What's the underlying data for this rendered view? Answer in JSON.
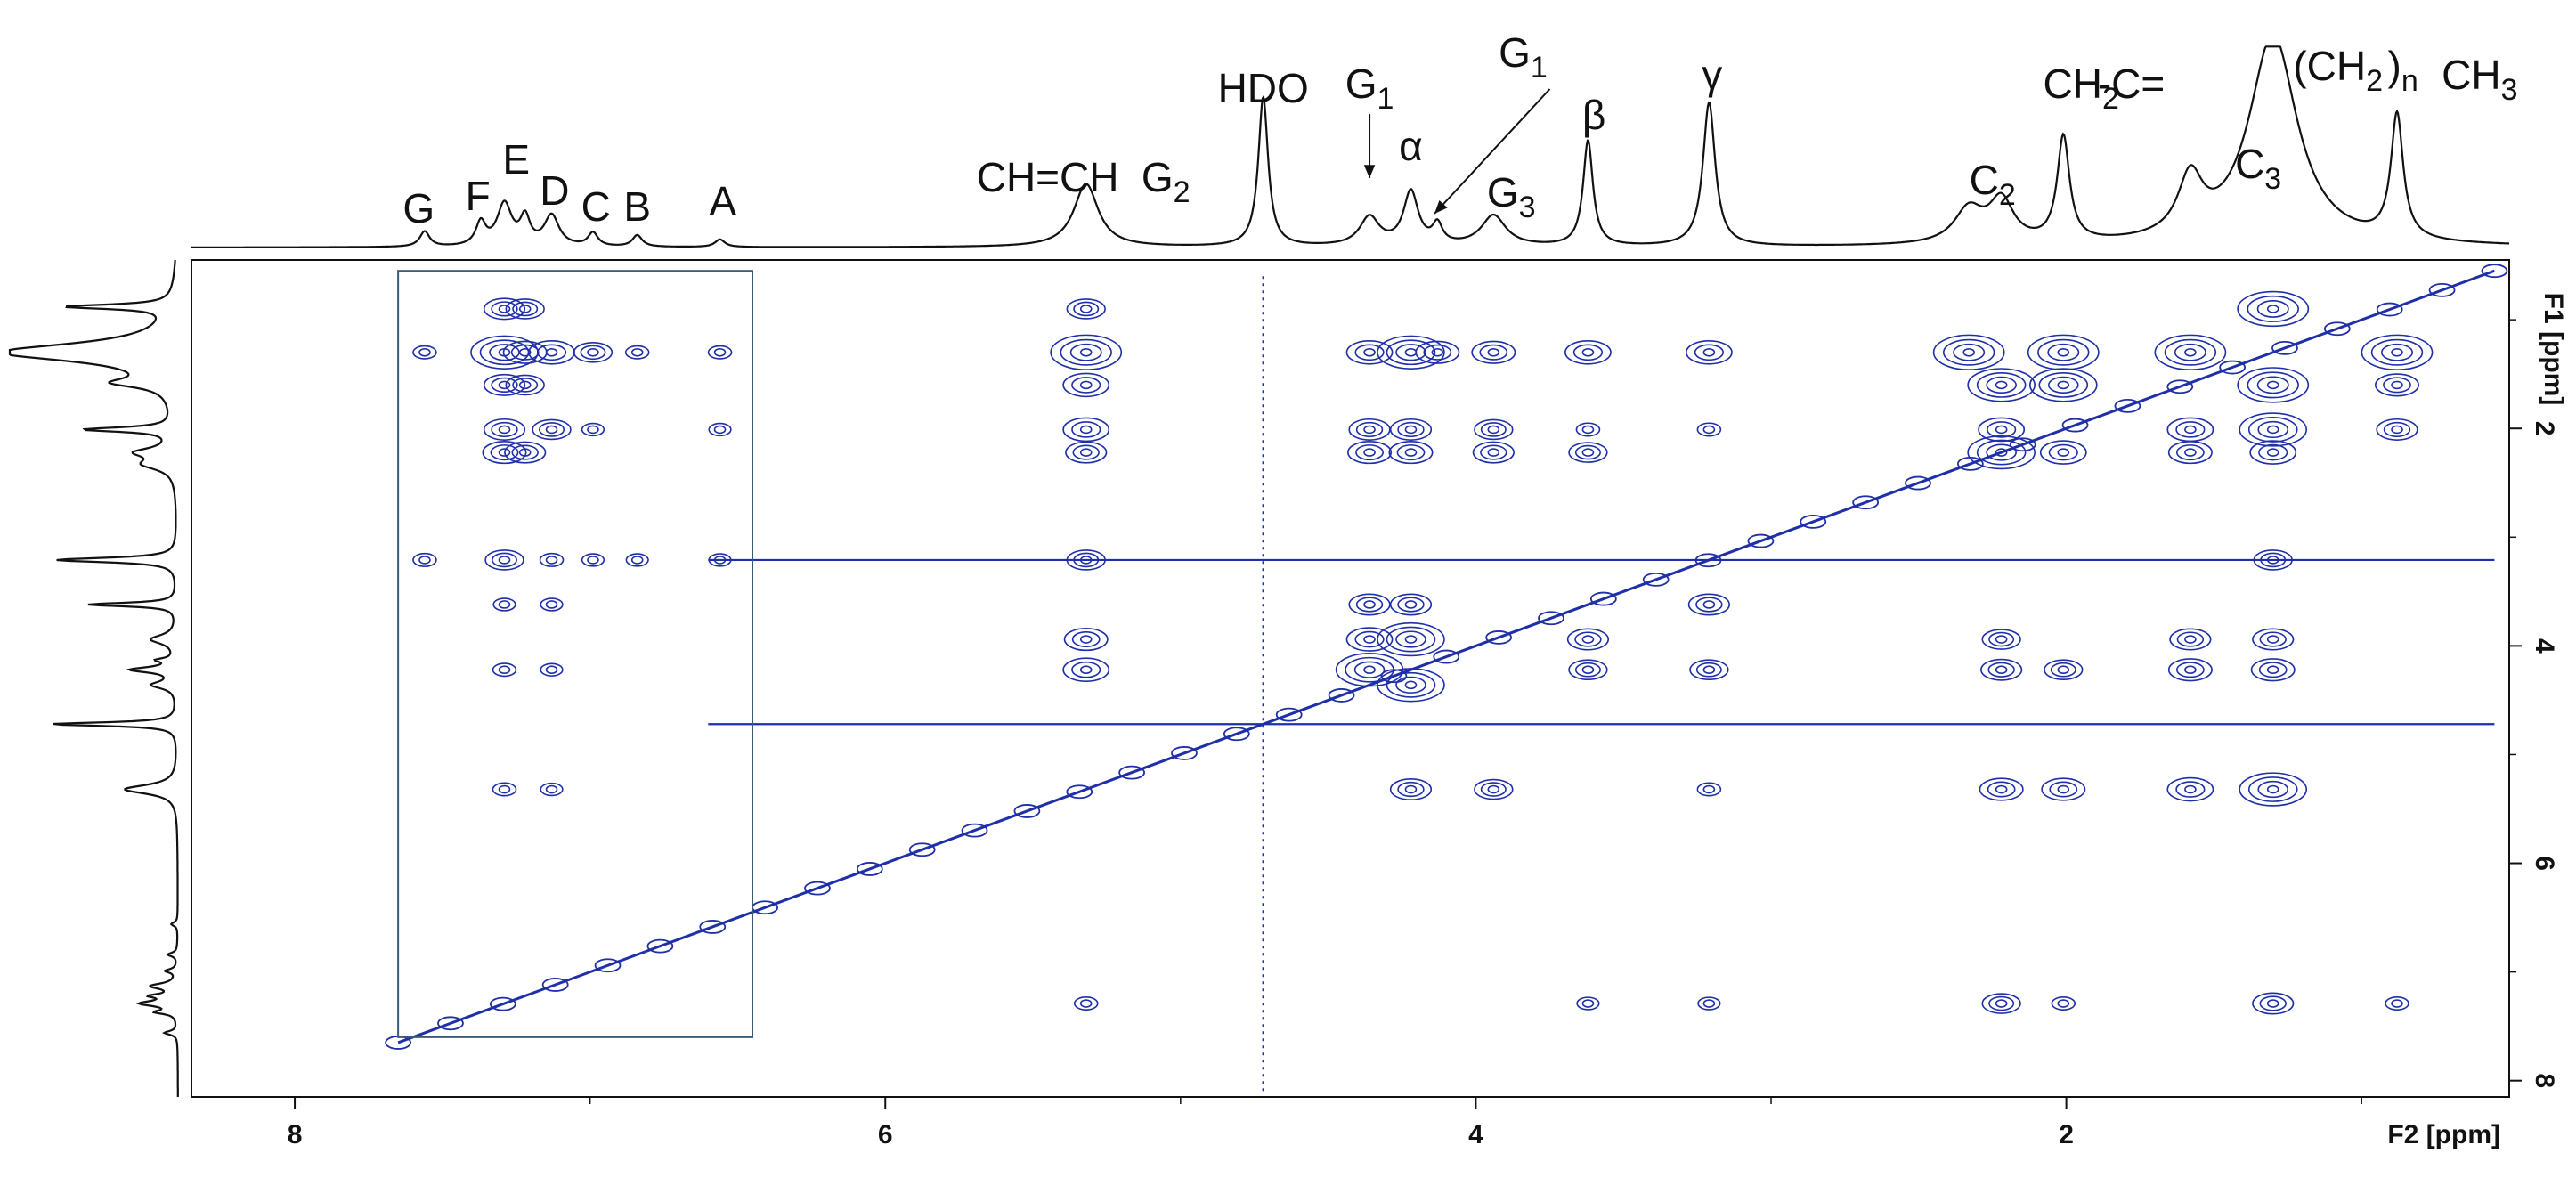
{
  "chart_data": {
    "type": "heatmap",
    "subtype": "2D NMR TOCSY contour map with 1D projections",
    "title": "",
    "xlabel": "F2 [ppm]",
    "ylabel": "F1 [ppm]",
    "x_reversed": true,
    "y_reversed": true,
    "xlim": [
      8.35,
      0.5
    ],
    "ylim": [
      0.45,
      8.15
    ],
    "x_ticks": [
      8,
      6,
      4,
      2
    ],
    "y_ticks": [
      2,
      4,
      6,
      8
    ],
    "contour_color": "#1f2fa8",
    "line_color": "#111111",
    "peak_labels": [
      {
        "text": "G",
        "sub": "",
        "ppm": 7.58
      },
      {
        "text": "F",
        "sub": "",
        "ppm": 7.38
      },
      {
        "text": "E",
        "sub": "",
        "ppm": 7.25
      },
      {
        "text": "D",
        "sub": "",
        "ppm": 7.12
      },
      {
        "text": "C",
        "sub": "",
        "ppm": 6.98
      },
      {
        "text": "B",
        "sub": "",
        "ppm": 6.84
      },
      {
        "text": "A",
        "sub": "",
        "ppm": 6.55
      },
      {
        "text": "CH=CH",
        "sub": "",
        "ppm": 5.45
      },
      {
        "text": "G",
        "sub": "2",
        "ppm": 5.05
      },
      {
        "text": "HDO",
        "sub": "",
        "ppm": 4.72
      },
      {
        "text": "G",
        "sub": "1",
        "ppm": 4.36
      },
      {
        "text": "α",
        "sub": "",
        "ppm": 4.22
      },
      {
        "text": "G",
        "sub": "1",
        "ppm": 3.84
      },
      {
        "text": "G",
        "sub": "3",
        "ppm": 3.88
      },
      {
        "text": "β",
        "sub": "",
        "ppm": 3.6
      },
      {
        "text": "γ",
        "sub": "",
        "ppm": 3.2
      },
      {
        "text": "C",
        "sub": "2",
        "ppm": 2.25
      },
      {
        "text": "CH",
        "sub": "2",
        "ppm": 1.95
      },
      {
        "text": "-C=",
        "sub": "",
        "ppm": 1.78
      },
      {
        "text": "C",
        "sub": "3",
        "ppm": 1.35
      },
      {
        "text": "(CH",
        "sub": "2",
        "ppm": 1.08
      },
      {
        "text": ")",
        "sub": "n",
        "ppm": 0.86
      },
      {
        "text": "CH",
        "sub": "3",
        "ppm": 0.6
      }
    ],
    "projection_peaks": [
      {
        "ppm": 7.56,
        "height": 0.08,
        "width": 0.02
      },
      {
        "ppm": 7.37,
        "height": 0.12,
        "width": 0.02
      },
      {
        "ppm": 7.29,
        "height": 0.22,
        "width": 0.03
      },
      {
        "ppm": 7.22,
        "height": 0.14,
        "width": 0.02
      },
      {
        "ppm": 7.13,
        "height": 0.16,
        "width": 0.03
      },
      {
        "ppm": 6.99,
        "height": 0.07,
        "width": 0.02
      },
      {
        "ppm": 6.84,
        "height": 0.06,
        "width": 0.02
      },
      {
        "ppm": 6.56,
        "height": 0.04,
        "width": 0.02
      },
      {
        "ppm": 5.32,
        "height": 0.33,
        "width": 0.05
      },
      {
        "ppm": 4.72,
        "height": 0.78,
        "width": 0.02
      },
      {
        "ppm": 4.36,
        "height": 0.15,
        "width": 0.04
      },
      {
        "ppm": 4.22,
        "height": 0.28,
        "width": 0.03
      },
      {
        "ppm": 4.13,
        "height": 0.1,
        "width": 0.02
      },
      {
        "ppm": 3.94,
        "height": 0.16,
        "width": 0.05
      },
      {
        "ppm": 3.62,
        "height": 0.55,
        "width": 0.02
      },
      {
        "ppm": 3.21,
        "height": 0.75,
        "width": 0.025
      },
      {
        "ppm": 2.33,
        "height": 0.18,
        "width": 0.06
      },
      {
        "ppm": 2.22,
        "height": 0.22,
        "width": 0.05
      },
      {
        "ppm": 2.01,
        "height": 0.55,
        "width": 0.025
      },
      {
        "ppm": 1.58,
        "height": 0.3,
        "width": 0.05
      },
      {
        "ppm": 1.3,
        "height": 1.1,
        "width": 0.1
      },
      {
        "ppm": 0.88,
        "height": 0.65,
        "width": 0.025
      }
    ],
    "diagonal": {
      "from_ppm": 7.65,
      "to_ppm": 0.55
    },
    "cross_peak_rows_F1": [
      0.9,
      1.3,
      1.6,
      2.01,
      2.22,
      3.21,
      3.62,
      3.94,
      4.22,
      4.36,
      4.72,
      5.32,
      7.13,
      7.29
    ],
    "cross_peak_columns_F2": [
      7.56,
      7.29,
      7.22,
      7.13,
      6.99,
      6.84,
      6.56,
      5.32,
      4.36,
      4.22,
      4.13,
      3.94,
      3.62,
      3.21,
      2.22,
      2.01,
      1.58,
      1.3,
      0.88
    ],
    "cross_peaks": [
      {
        "f2": 7.56,
        "f1": 1.3,
        "i": 0.4
      },
      {
        "f2": 7.29,
        "f1": 1.3,
        "i": 0.9
      },
      {
        "f2": 7.22,
        "f1": 1.3,
        "i": 0.7
      },
      {
        "f2": 7.13,
        "f1": 1.3,
        "i": 0.8
      },
      {
        "f2": 6.99,
        "f1": 1.3,
        "i": 0.5
      },
      {
        "f2": 6.84,
        "f1": 1.3,
        "i": 0.4
      },
      {
        "f2": 6.56,
        "f1": 1.3,
        "i": 0.4
      },
      {
        "f2": 7.29,
        "f1": 0.9,
        "i": 0.6
      },
      {
        "f2": 7.22,
        "f1": 0.9,
        "i": 0.5
      },
      {
        "f2": 7.29,
        "f1": 1.6,
        "i": 0.6
      },
      {
        "f2": 7.22,
        "f1": 1.6,
        "i": 0.5
      },
      {
        "f2": 7.29,
        "f1": 2.01,
        "i": 0.6
      },
      {
        "f2": 7.13,
        "f1": 2.01,
        "i": 0.5
      },
      {
        "f2": 6.99,
        "f1": 2.01,
        "i": 0.3
      },
      {
        "f2": 6.56,
        "f1": 2.01,
        "i": 0.3
      },
      {
        "f2": 7.29,
        "f1": 2.22,
        "i": 0.7
      },
      {
        "f2": 7.22,
        "f1": 2.22,
        "i": 0.6
      },
      {
        "f2": 7.56,
        "f1": 3.21,
        "i": 0.4
      },
      {
        "f2": 7.29,
        "f1": 3.21,
        "i": 0.5
      },
      {
        "f2": 7.13,
        "f1": 3.21,
        "i": 0.4
      },
      {
        "f2": 6.99,
        "f1": 3.21,
        "i": 0.3
      },
      {
        "f2": 6.84,
        "f1": 3.21,
        "i": 0.3
      },
      {
        "f2": 6.56,
        "f1": 3.21,
        "i": 0.3
      },
      {
        "f2": 7.29,
        "f1": 3.62,
        "i": 0.3
      },
      {
        "f2": 7.13,
        "f1": 3.62,
        "i": 0.3
      },
      {
        "f2": 7.29,
        "f1": 4.22,
        "i": 0.4
      },
      {
        "f2": 7.13,
        "f1": 4.22,
        "i": 0.3
      },
      {
        "f2": 7.29,
        "f1": 5.32,
        "i": 0.4
      },
      {
        "f2": 7.13,
        "f1": 5.32,
        "i": 0.3
      },
      {
        "f2": 5.32,
        "f1": 1.3,
        "i": 1.0
      },
      {
        "f2": 5.32,
        "f1": 0.9,
        "i": 0.5
      },
      {
        "f2": 5.32,
        "f1": 1.6,
        "i": 0.8
      },
      {
        "f2": 5.32,
        "f1": 2.01,
        "i": 0.8
      },
      {
        "f2": 5.32,
        "f1": 2.22,
        "i": 0.6
      },
      {
        "f2": 5.32,
        "f1": 3.21,
        "i": 0.5
      },
      {
        "f2": 5.32,
        "f1": 3.94,
        "i": 0.7
      },
      {
        "f2": 5.32,
        "f1": 4.22,
        "i": 0.8
      },
      {
        "f2": 5.32,
        "f1": 7.29,
        "i": 0.4
      },
      {
        "f2": 4.36,
        "f1": 1.3,
        "i": 0.8
      },
      {
        "f2": 4.22,
        "f1": 1.3,
        "i": 0.9
      },
      {
        "f2": 4.13,
        "f1": 1.3,
        "i": 0.7
      },
      {
        "f2": 3.94,
        "f1": 1.3,
        "i": 0.7
      },
      {
        "f2": 4.36,
        "f1": 2.01,
        "i": 0.6
      },
      {
        "f2": 4.22,
        "f1": 2.01,
        "i": 0.6
      },
      {
        "f2": 3.94,
        "f1": 2.01,
        "i": 0.5
      },
      {
        "f2": 4.36,
        "f1": 2.22,
        "i": 0.7
      },
      {
        "f2": 4.22,
        "f1": 2.22,
        "i": 0.7
      },
      {
        "f2": 3.94,
        "f1": 2.22,
        "i": 0.6
      },
      {
        "f2": 4.36,
        "f1": 3.62,
        "i": 0.6
      },
      {
        "f2": 4.22,
        "f1": 3.62,
        "i": 0.6
      },
      {
        "f2": 4.36,
        "f1": 3.94,
        "i": 0.8
      },
      {
        "f2": 4.22,
        "f1": 3.94,
        "i": 0.9
      },
      {
        "f2": 4.36,
        "f1": 4.22,
        "i": 0.9
      },
      {
        "f2": 4.22,
        "f1": 4.36,
        "i": 0.9
      },
      {
        "f2": 4.22,
        "f1": 5.32,
        "i": 0.6
      },
      {
        "f2": 3.94,
        "f1": 5.32,
        "i": 0.5
      },
      {
        "f2": 3.62,
        "f1": 1.3,
        "i": 0.8
      },
      {
        "f2": 3.62,
        "f1": 2.01,
        "i": 0.4
      },
      {
        "f2": 3.62,
        "f1": 2.22,
        "i": 0.5
      },
      {
        "f2": 3.62,
        "f1": 3.94,
        "i": 0.6
      },
      {
        "f2": 3.62,
        "f1": 4.22,
        "i": 0.5
      },
      {
        "f2": 3.62,
        "f1": 7.29,
        "i": 0.3
      },
      {
        "f2": 3.21,
        "f1": 1.3,
        "i": 0.8
      },
      {
        "f2": 3.21,
        "f1": 2.01,
        "i": 0.4
      },
      {
        "f2": 3.21,
        "f1": 3.62,
        "i": 0.6
      },
      {
        "f2": 3.21,
        "f1": 4.22,
        "i": 0.5
      },
      {
        "f2": 3.21,
        "f1": 5.32,
        "i": 0.4
      },
      {
        "f2": 3.21,
        "f1": 7.29,
        "i": 0.3
      },
      {
        "f2": 2.33,
        "f1": 1.3,
        "i": 1.0
      },
      {
        "f2": 2.22,
        "f1": 1.6,
        "i": 0.9
      },
      {
        "f2": 2.22,
        "f1": 2.01,
        "i": 0.8
      },
      {
        "f2": 2.22,
        "f1": 2.22,
        "i": 0.9
      },
      {
        "f2": 2.22,
        "f1": 3.94,
        "i": 0.5
      },
      {
        "f2": 2.22,
        "f1": 4.22,
        "i": 0.6
      },
      {
        "f2": 2.22,
        "f1": 5.32,
        "i": 0.7
      },
      {
        "f2": 2.22,
        "f1": 7.29,
        "i": 0.5
      },
      {
        "f2": 2.01,
        "f1": 1.3,
        "i": 1.0
      },
      {
        "f2": 2.01,
        "f1": 1.6,
        "i": 0.9
      },
      {
        "f2": 2.01,
        "f1": 2.22,
        "i": 0.8
      },
      {
        "f2": 2.01,
        "f1": 4.22,
        "i": 0.5
      },
      {
        "f2": 2.01,
        "f1": 5.32,
        "i": 0.7
      },
      {
        "f2": 2.01,
        "f1": 7.29,
        "i": 0.4
      },
      {
        "f2": 1.58,
        "f1": 1.3,
        "i": 1.0
      },
      {
        "f2": 1.58,
        "f1": 2.01,
        "i": 0.8
      },
      {
        "f2": 1.58,
        "f1": 2.22,
        "i": 0.7
      },
      {
        "f2": 1.58,
        "f1": 3.94,
        "i": 0.6
      },
      {
        "f2": 1.58,
        "f1": 4.22,
        "i": 0.7
      },
      {
        "f2": 1.58,
        "f1": 5.32,
        "i": 0.8
      },
      {
        "f2": 1.3,
        "f1": 0.9,
        "i": 1.0
      },
      {
        "f2": 1.3,
        "f1": 1.6,
        "i": 1.0
      },
      {
        "f2": 1.3,
        "f1": 2.01,
        "i": 0.9
      },
      {
        "f2": 1.3,
        "f1": 2.22,
        "i": 0.8
      },
      {
        "f2": 1.3,
        "f1": 3.21,
        "i": 0.5
      },
      {
        "f2": 1.3,
        "f1": 3.94,
        "i": 0.6
      },
      {
        "f2": 1.3,
        "f1": 4.22,
        "i": 0.7
      },
      {
        "f2": 1.3,
        "f1": 5.32,
        "i": 0.9
      },
      {
        "f2": 1.3,
        "f1": 7.29,
        "i": 0.6
      },
      {
        "f2": 0.88,
        "f1": 1.3,
        "i": 1.0
      },
      {
        "f2": 0.88,
        "f1": 1.6,
        "i": 0.7
      },
      {
        "f2": 0.88,
        "f1": 2.01,
        "i": 0.6
      },
      {
        "f2": 0.88,
        "f1": 7.29,
        "i": 0.4
      }
    ],
    "streaks_F1": [
      3.21,
      4.72
    ],
    "aromatic_box": {
      "f2_from": 7.65,
      "f2_to": 6.45,
      "f1_from": 0.55,
      "f1_to": 7.6
    }
  }
}
